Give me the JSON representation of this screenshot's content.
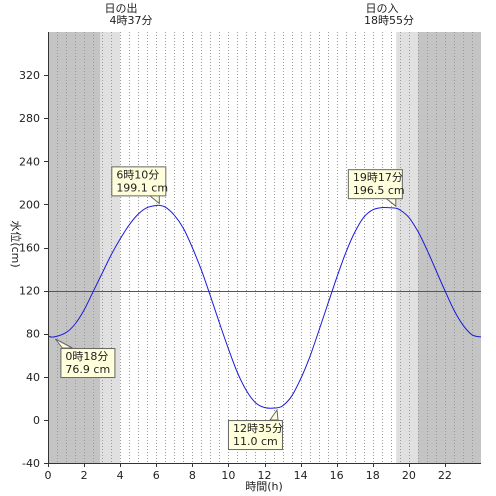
{
  "chart_data": {
    "type": "line",
    "xlabel": "時間(h)",
    "ylabel": "水位(cm)",
    "xlim": [
      0,
      24
    ],
    "ylim": [
      -40,
      360
    ],
    "x_ticks": [
      0,
      2,
      4,
      6,
      8,
      10,
      12,
      14,
      16,
      18,
      20,
      22
    ],
    "y_ticks": [
      -40,
      0,
      40,
      80,
      120,
      160,
      200,
      240,
      280,
      320
    ],
    "grid": "vertical dotted lines every 0.5 h",
    "reference_line": {
      "y": 120,
      "color": "#e8190f"
    },
    "line_color": "#1a1adc",
    "sunrise": {
      "label": "日の出",
      "time": "4時37分",
      "hour": 4.62
    },
    "sunset": {
      "label": "日の入",
      "time": "18時55分",
      "hour": 18.92
    },
    "shading": {
      "night_color": "#c4c4c4",
      "twilight_color": "#e0e0e0",
      "bands": [
        {
          "from": 0,
          "to": 2.9,
          "kind": "night"
        },
        {
          "from": 2.9,
          "to": 4.0,
          "kind": "twilight"
        },
        {
          "from": 19.3,
          "to": 20.5,
          "kind": "twilight"
        },
        {
          "from": 20.5,
          "to": 24,
          "kind": "night"
        }
      ]
    },
    "series": [
      {
        "x": [
          0,
          0.3,
          1,
          1.5,
          2,
          2.5,
          3,
          3.5,
          4,
          4.5,
          5,
          5.5,
          6,
          6.17,
          6.5,
          7,
          7.5,
          8,
          8.5,
          9,
          9.5,
          10,
          10.5,
          11,
          11.5,
          12,
          12.58,
          13,
          13.5,
          14,
          14.5,
          15,
          15.5,
          16,
          16.5,
          17,
          17.5,
          18,
          18.5,
          19,
          19.28,
          19.5,
          20,
          20.5,
          21,
          21.5,
          22,
          22.5,
          23,
          23.5,
          24
        ],
        "y": [
          78,
          76.9,
          81,
          89,
          102,
          119,
          136,
          153,
          168,
          181,
          191,
          197,
          199,
          199.1,
          197.5,
          190,
          178,
          160,
          139,
          115,
          90,
          66,
          44,
          27,
          16,
          11.5,
          11.0,
          13,
          22,
          38,
          58,
          82,
          107,
          132,
          155,
          174,
          188,
          195,
          197,
          196.8,
          196.5,
          195,
          188,
          175,
          158,
          139,
          120,
          102,
          88,
          79,
          77
        ]
      }
    ],
    "annotations": [
      {
        "time": "0時18分",
        "value": "76.9 cm",
        "x": 0.3,
        "y": 76.9
      },
      {
        "time": "6時10分",
        "value": "199.1 cm",
        "x": 6.17,
        "y": 199.1
      },
      {
        "time": "12時35分",
        "value": "11.0 cm",
        "x": 12.58,
        "y": 11.0
      },
      {
        "time": "19時17分",
        "value": "196.5 cm",
        "x": 19.28,
        "y": 196.5
      }
    ]
  }
}
